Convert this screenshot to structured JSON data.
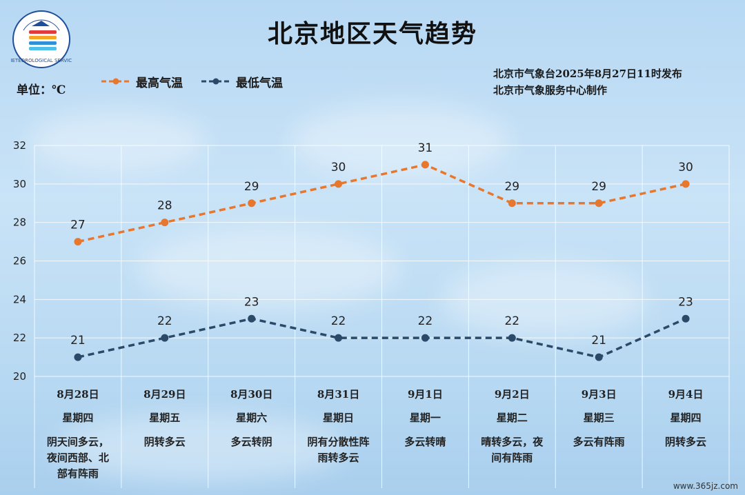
{
  "title": "北京地区天气趋势",
  "unit_label": "单位：℃",
  "logo_text": "METEOROLOGICAL SERVICE",
  "issuer": {
    "line1": "北京市气象台2025年8月27日11时发布",
    "line2": "北京市气象服务中心制作"
  },
  "colors": {
    "high": "#e8772e",
    "low": "#2b4a6a"
  },
  "watermark": "www.365jz.com",
  "chart_data": {
    "type": "line",
    "title": "北京地区天气趋势",
    "categories": [
      "8月28日",
      "8月29日",
      "8月30日",
      "8月31日",
      "9月1日",
      "9月2日",
      "9月3日",
      "9月4日"
    ],
    "weekdays": [
      "星期四",
      "星期五",
      "星期六",
      "星期日",
      "星期一",
      "星期二",
      "星期三",
      "星期四"
    ],
    "weather": [
      [
        "阴天间多云，",
        "夜间西部、北",
        "部有阵雨"
      ],
      [
        "阴转多云"
      ],
      [
        "多云转阴"
      ],
      [
        "阴有分散性阵",
        "雨转多云"
      ],
      [
        "多云转晴"
      ],
      [
        "晴转多云，夜",
        "间有阵雨"
      ],
      [
        "多云有阵雨"
      ],
      [
        "阴转多云"
      ]
    ],
    "series": [
      {
        "name": "最高气温",
        "values": [
          27,
          28,
          29,
          30,
          31,
          29,
          29,
          30
        ]
      },
      {
        "name": "最低气温",
        "values": [
          21,
          22,
          23,
          22,
          22,
          22,
          21,
          23
        ]
      }
    ],
    "ylim": [
      20,
      32
    ],
    "yticks": [
      32,
      30,
      28,
      26,
      24,
      22,
      20
    ],
    "grid": true,
    "legend_position": "top-left"
  }
}
